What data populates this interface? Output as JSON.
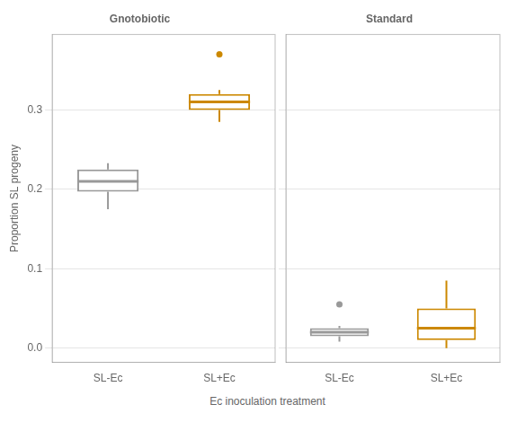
{
  "chart_data": [
    {
      "type": "boxplot",
      "title": "Gnotobiotic",
      "xlabel": "Ec inoculation treatment",
      "ylabel": "Proportion SL progeny",
      "categories": [
        "SL-Ec",
        "SL+Ec"
      ],
      "colors": [
        "#999999",
        "#CC8800"
      ],
      "values": [
        {
          "q1": 0.197,
          "median": 0.21,
          "q3": 0.225,
          "whisker_low": 0.175,
          "whisker_high": 0.233,
          "outliers": []
        },
        {
          "q1": 0.3,
          "median": 0.31,
          "q3": 0.32,
          "whisker_low": 0.285,
          "whisker_high": 0.325,
          "outliers": [
            0.37
          ]
        }
      ],
      "ylim": [
        -0.018,
        0.395
      ],
      "yticks": [
        {
          "value": 0.0,
          "label": "0.0"
        },
        0.1,
        0.2,
        0.3
      ],
      "grid": true
    },
    {
      "type": "boxplot",
      "title": "Standard",
      "categories": [
        "SL-Ec",
        "SL+Ec"
      ],
      "colors": [
        "#999999",
        "#CC8800"
      ],
      "values": [
        {
          "q1": 0.015,
          "median": 0.02,
          "q3": 0.025,
          "whisker_low": 0.008,
          "whisker_high": 0.028,
          "outliers": [
            0.055
          ]
        },
        {
          "q1": 0.01,
          "median": 0.025,
          "q3": 0.05,
          "whisker_low": 0.0,
          "whisker_high": 0.085,
          "outliers": []
        }
      ],
      "ylim": [
        -0.018,
        0.395
      ],
      "yticks": [
        {
          "value": 0.0,
          "label": "0.0"
        },
        0.1,
        0.2,
        0.3
      ],
      "grid": true,
      "tick_labels": "x"
    }
  ]
}
